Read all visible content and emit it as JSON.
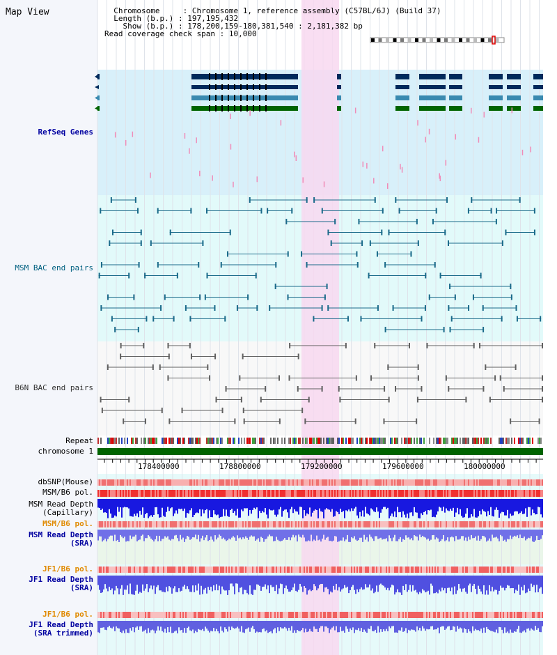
{
  "title": "Map View",
  "info": {
    "chromosome_label": "Chromosome",
    "chromosome_value": "Chromosome 1, reference assembly (C57BL/6J) (Build 37)",
    "length_label": "Length (b.p.)",
    "length_value": "197,195,432",
    "show_label": "Show (b.p.)",
    "show_value": "178,200,159-180,381,540 : 2,181,382 bp",
    "coverage_label": "Read coverage check span",
    "coverage_value": "10,000"
  },
  "tracks": {
    "refseq": "RefSeq Genes",
    "msm_bac": "MSM BAC end pairs",
    "b6n_bac": "B6N BAC end pairs",
    "repeat": "Repeat",
    "chromosome": "chromosome 1",
    "dbsnp": "dbSNP(Mouse)",
    "msm_pol": "MSM/B6 pol.",
    "msm_depth_cap_1": "MSM Read Depth",
    "msm_depth_cap_2": "(Capillary)",
    "msm_pol_sra": "MSM/B6 pol.",
    "msm_depth_sra_1": "MSM Read Depth",
    "msm_depth_sra_2": "(SRA)",
    "jf1_pol": "JF1/B6 pol.",
    "jf1_depth_1": "JF1 Read Depth",
    "jf1_depth_2": "(SRA)",
    "jf1_pol_trim": "JF1/B6 pol.",
    "jf1_depth_trim_1": "JF1 Read Depth",
    "jf1_depth_trim_2": "(SRA trimmed)"
  },
  "axis": {
    "ticks": [
      "178400000",
      "178800000",
      "179200000",
      "179600000",
      "180000000"
    ]
  },
  "colors": {
    "refseq_bg": "#d8f0fa",
    "msm_bg": "#e2fafa",
    "highlight": "#f8d8f0",
    "chromosome_bar": "#006400",
    "gene_dark": "#002a5c",
    "gene_mid": "#3a8ab0",
    "gene_green": "#006400",
    "bac_teal": "#1a6a8a",
    "bac_gray": "#606060"
  }
}
